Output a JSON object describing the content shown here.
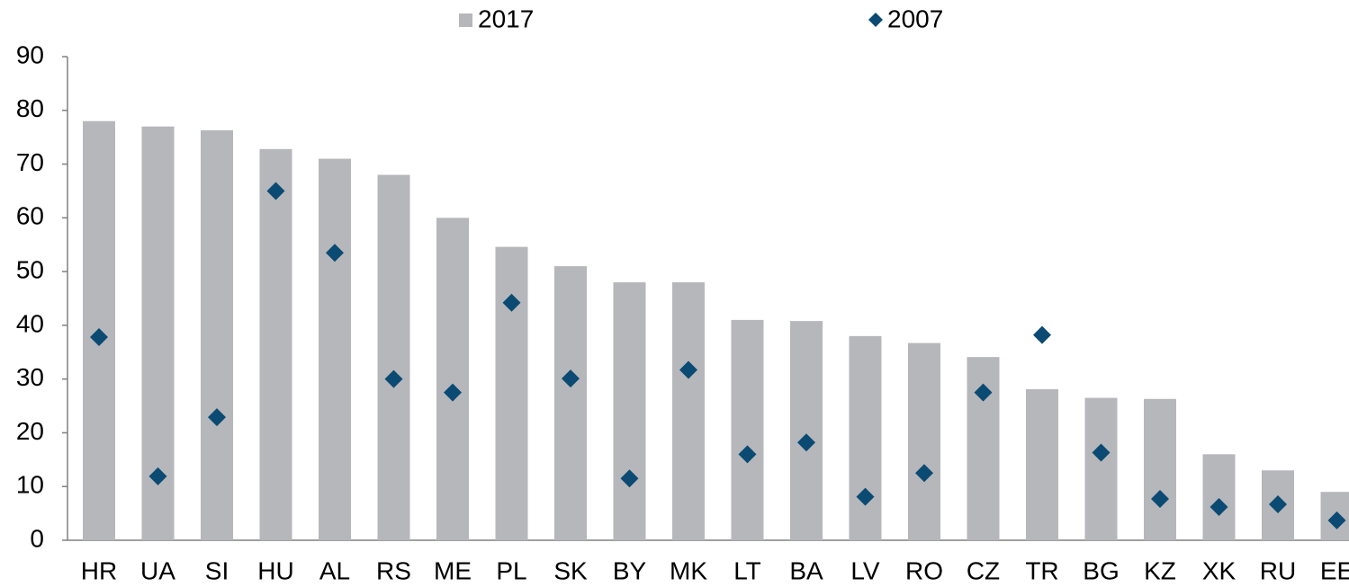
{
  "chart_data": {
    "type": "bar",
    "categories": [
      "HR",
      "UA",
      "SI",
      "HU",
      "AL",
      "RS",
      "ME",
      "PL",
      "SK",
      "BY",
      "MK",
      "LT",
      "BA",
      "LV",
      "RO",
      "CZ",
      "TR",
      "BG",
      "KZ",
      "XK",
      "RU",
      "EE"
    ],
    "series": [
      {
        "name": "2017",
        "type": "bar",
        "color": "#b6b7bb",
        "values": [
          78,
          77,
          76.3,
          72.8,
          71,
          68,
          60,
          54.6,
          51,
          48,
          48,
          41,
          40.8,
          38,
          36.7,
          34.1,
          28.1,
          26.5,
          26.3,
          16,
          13,
          9
        ]
      },
      {
        "name": "2007",
        "type": "scatter",
        "color": "#0b4a72",
        "values": [
          37.8,
          11.9,
          22.9,
          65,
          53.5,
          30,
          27.5,
          44.2,
          30.1,
          11.5,
          31.7,
          16,
          18.2,
          8.1,
          12.5,
          27.5,
          38.2,
          16.3,
          7.7,
          6.2,
          6.7,
          3.7
        ]
      }
    ],
    "ylim": [
      0,
      90
    ],
    "yticks": [
      0,
      10,
      20,
      30,
      40,
      50,
      60,
      70,
      80,
      90
    ],
    "grid": false,
    "legend": "top"
  }
}
